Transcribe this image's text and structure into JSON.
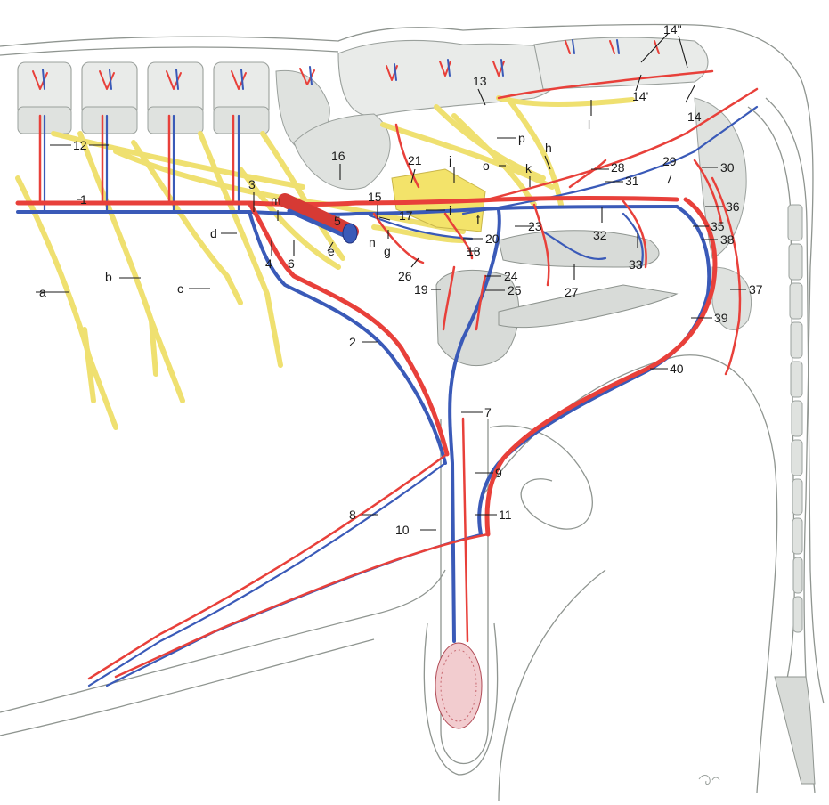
{
  "colors": {
    "artery": "#e8403a",
    "vein": "#3a5ab8",
    "nerve": "#efe070",
    "nerve_edge": "#c9b64a",
    "bone": "#e9ebe9",
    "outline": "#8f9590"
  },
  "labels": {
    "l1": "1",
    "l2": "2",
    "l3": "3",
    "l4": "4",
    "l5": "5",
    "l6": "6",
    "l7": "7",
    "l8": "8",
    "l9": "9",
    "l10": "10",
    "l11": "11",
    "l12": "12",
    "l13": "13",
    "l14": "14",
    "l14p": "14'",
    "l14pp": "14\"",
    "l15": "15",
    "l16": "16",
    "l17": "17",
    "l18": "18",
    "l19": "19",
    "l20": "20",
    "l21": "21",
    "l23": "23",
    "l24": "24",
    "l25": "25",
    "l26": "26",
    "l27": "27",
    "l28": "28",
    "l29": "29",
    "l30": "30",
    "l31": "31",
    "l32": "32",
    "l33": "33",
    "l35": "35",
    "l36": "36",
    "l37": "37",
    "l38": "38",
    "l39": "39",
    "l40": "40",
    "la": "a",
    "lb": "b",
    "lc": "c",
    "ld": "d",
    "le": "e",
    "lf": "f",
    "lg": "g",
    "lh": "h",
    "li": "i",
    "lj": "j",
    "lk": "k",
    "ll": "l",
    "lm": "m",
    "ln": "n",
    "lo": "o",
    "lp": "p"
  }
}
